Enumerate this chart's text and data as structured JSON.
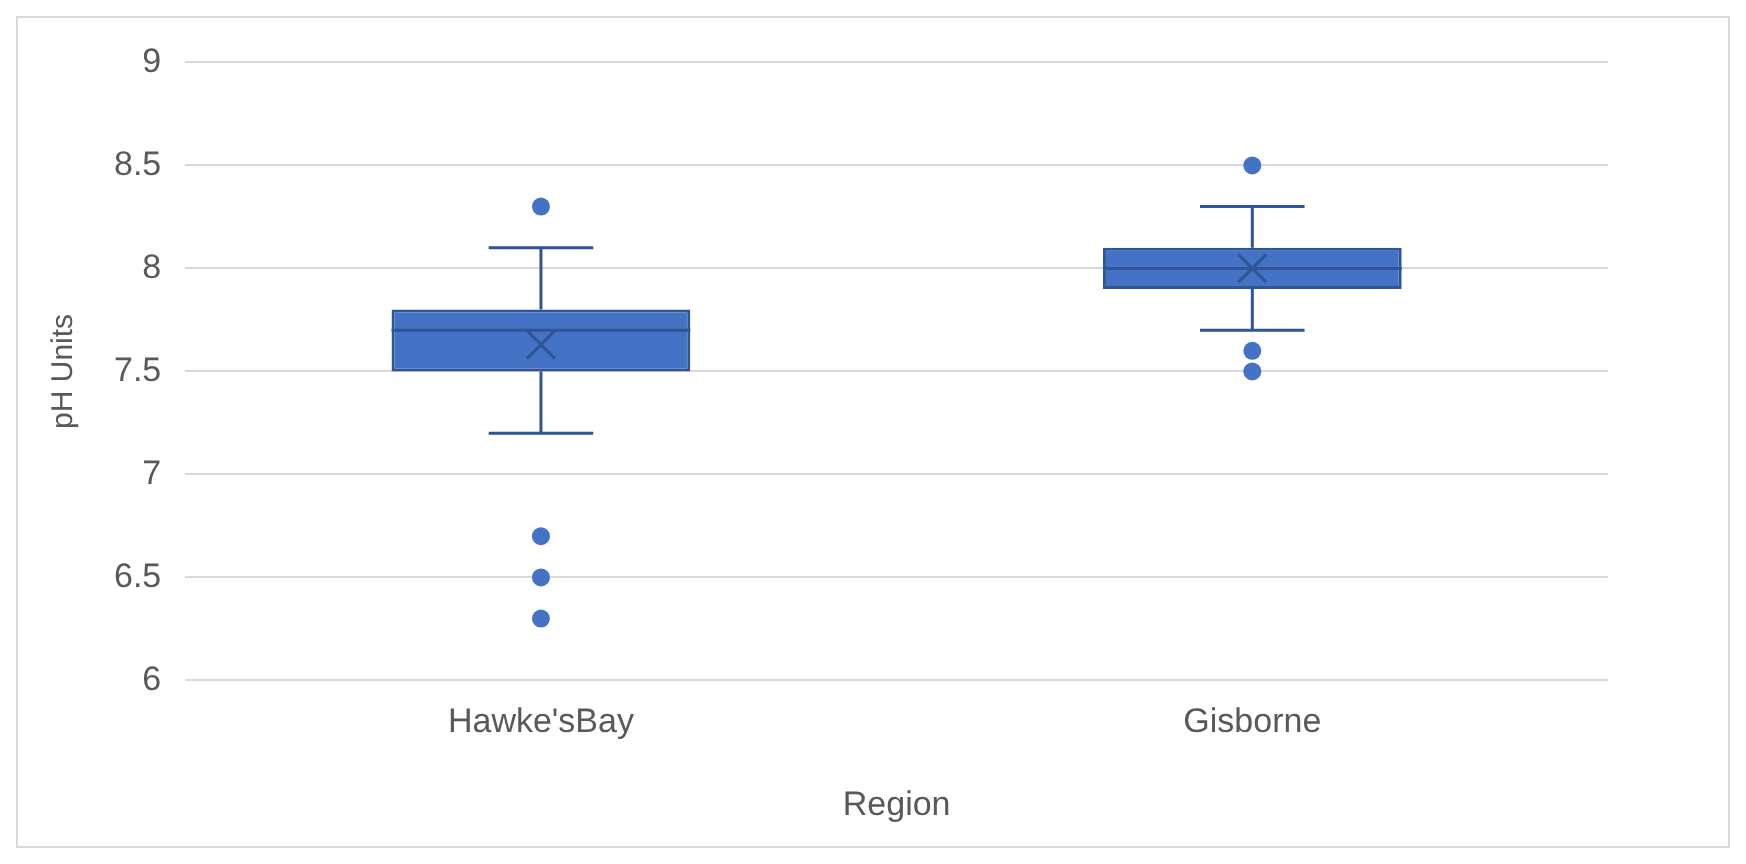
{
  "chart_data": {
    "type": "box",
    "categories": [
      "Hawke'sBay",
      "Gisborne"
    ],
    "xlabel": "Region",
    "ylabel": "pH Units",
    "ylim": [
      6,
      9
    ],
    "yticks": [
      6,
      6.5,
      7,
      7.5,
      8,
      8.5,
      9
    ],
    "grid": "y",
    "color": "#4472c4",
    "boxes": [
      {
        "low": 7.2,
        "q1": 7.5,
        "median": 7.7,
        "q3": 7.8,
        "high": 8.1,
        "mean": 7.63,
        "outliers": [
          8.3,
          6.7,
          6.5,
          6.3
        ]
      },
      {
        "low": 7.7,
        "q1": 7.9,
        "median": 8.0,
        "q3": 8.1,
        "high": 8.3,
        "mean": 8.0,
        "outliers": [
          8.5,
          7.6,
          7.5
        ]
      }
    ]
  }
}
